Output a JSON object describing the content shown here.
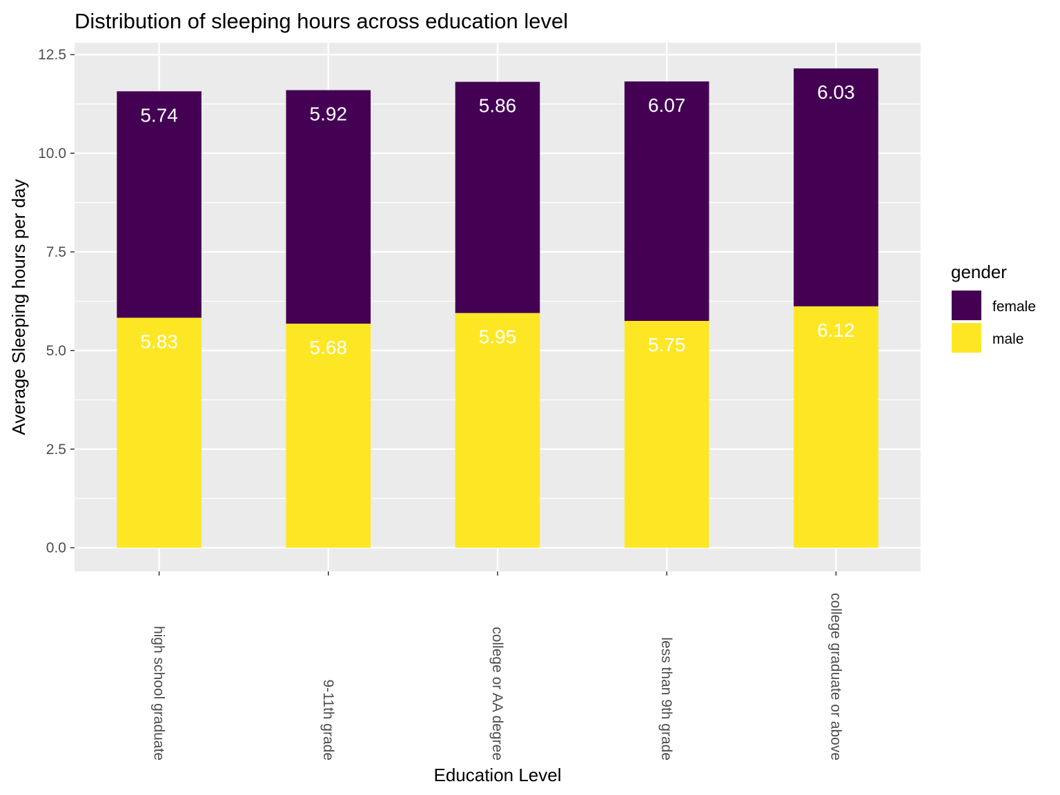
{
  "chart_data": {
    "type": "bar",
    "stacked": true,
    "title": "Distribution of sleeping hours across education level",
    "xlabel": "Education Level",
    "ylabel": "Average Sleeping hours per day",
    "categories": [
      "high school graduate",
      "9-11th grade",
      "college or AA degree",
      "less than 9th grade",
      "college graduate or above"
    ],
    "series": [
      {
        "name": "male",
        "color": "#FDE725",
        "values": [
          5.83,
          5.68,
          5.95,
          5.75,
          6.12
        ],
        "labels": [
          "5.83",
          "5.68",
          "5.95",
          "5.75",
          "6.12"
        ]
      },
      {
        "name": "female",
        "color": "#440154",
        "values": [
          5.74,
          5.92,
          5.86,
          6.07,
          6.03
        ],
        "labels": [
          "5.74",
          "5.92",
          "5.86",
          "6.07",
          "6.03"
        ]
      }
    ],
    "ylim": [
      -0.6,
      12.8
    ],
    "yticks": [
      0,
      2.5,
      5,
      7.5,
      10,
      12.5
    ],
    "ytick_labels": [
      "0.0",
      "2.5",
      "5.0",
      "7.5",
      "10.0",
      "12.5"
    ],
    "grid": true,
    "background": "#EBEBEB",
    "legend": {
      "title": "gender",
      "position": "right",
      "entries": [
        {
          "label": "female",
          "color": "#440154"
        },
        {
          "label": "male",
          "color": "#FDE725"
        }
      ]
    }
  }
}
